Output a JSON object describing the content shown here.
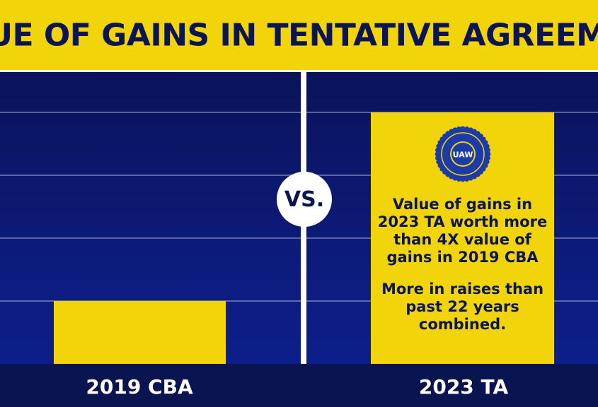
{
  "title": "VALUE OF GAINS IN TENTATIVE AGREEMENT",
  "vs_label": "VS.",
  "logo": {
    "icon": "uaw-seal-icon",
    "text": "UAW"
  },
  "notes": {
    "comparison": "Value of gains in 2023 TA worth more than 4X value of gains in 2019 CBA",
    "raises": "More in raises than past 22 years combined."
  },
  "colors": {
    "yellow": "#f2d40a",
    "navy": "#0b1552",
    "background": "#0c1a78",
    "white": "#ffffff"
  },
  "chart_data": {
    "type": "bar",
    "title": "VALUE OF GAINS IN TENTATIVE AGREEMENT",
    "categories": [
      "2019 CBA",
      "2023 TA"
    ],
    "values": [
      1,
      4
    ],
    "ylim": [
      0,
      4.2
    ],
    "grid": true,
    "gridlines": [
      1,
      2,
      3,
      4
    ],
    "xlabel": "",
    "ylabel": ""
  }
}
